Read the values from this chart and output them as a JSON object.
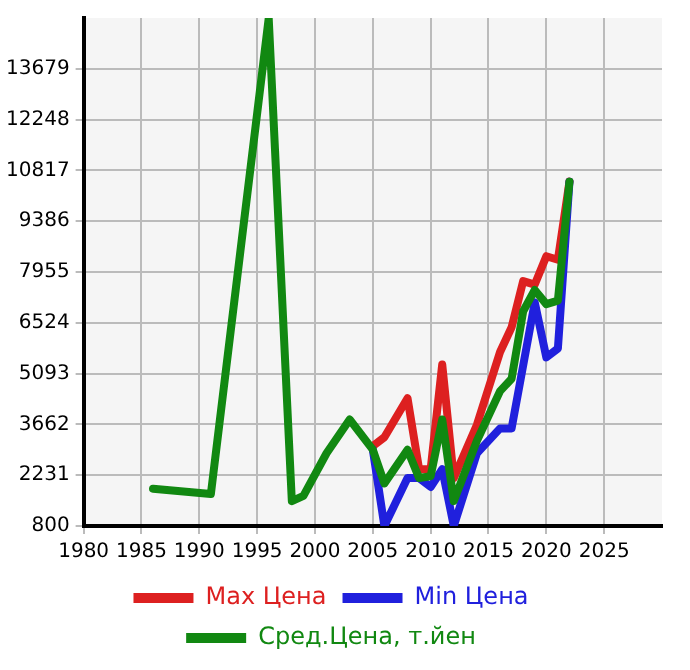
{
  "chart_data": {
    "type": "line",
    "x": [
      1986,
      1991,
      1996,
      1998,
      1999,
      2001,
      2003,
      2005,
      2006,
      2008,
      2009,
      2010,
      2011,
      2012,
      2014,
      2016,
      2017,
      2018,
      2019,
      2020,
      2021,
      2022
    ],
    "series": [
      {
        "name": "Max Цена",
        "color": "#dd2020",
        "values": [
          null,
          null,
          null,
          null,
          null,
          null,
          null,
          3050,
          3300,
          4400,
          2400,
          2400,
          5350,
          2150,
          3650,
          5700,
          6400,
          7700,
          7600,
          8400,
          8300,
          10500
        ]
      },
      {
        "name": "Min Цена",
        "color": "#2020dd",
        "values": [
          null,
          null,
          null,
          null,
          null,
          null,
          null,
          2950,
          800,
          2150,
          2150,
          1900,
          2400,
          800,
          2850,
          3550,
          3550,
          null,
          7100,
          5550,
          5800,
          10500
        ]
      },
      {
        "name": "Сред.Цена, т.йен",
        "color": "#118811",
        "values": [
          1850,
          1700,
          15100,
          1500,
          1650,
          2850,
          3800,
          2950,
          2000,
          2950,
          2150,
          2200,
          3800,
          1500,
          3200,
          4600,
          4950,
          6850,
          7450,
          7050,
          7150,
          10500
        ]
      }
    ],
    "xlim": [
      1980,
      2030
    ],
    "xticks": [
      1980,
      1985,
      1990,
      1995,
      2000,
      2005,
      2010,
      2015,
      2020,
      2025
    ],
    "ylim": [
      800,
      15110
    ],
    "yticks": [
      800,
      2231,
      3662,
      5093,
      6524,
      7955,
      9386,
      10817,
      12248,
      13679
    ],
    "grid": true,
    "legend": "bottom",
    "marker": "none",
    "line_style": "solid"
  }
}
